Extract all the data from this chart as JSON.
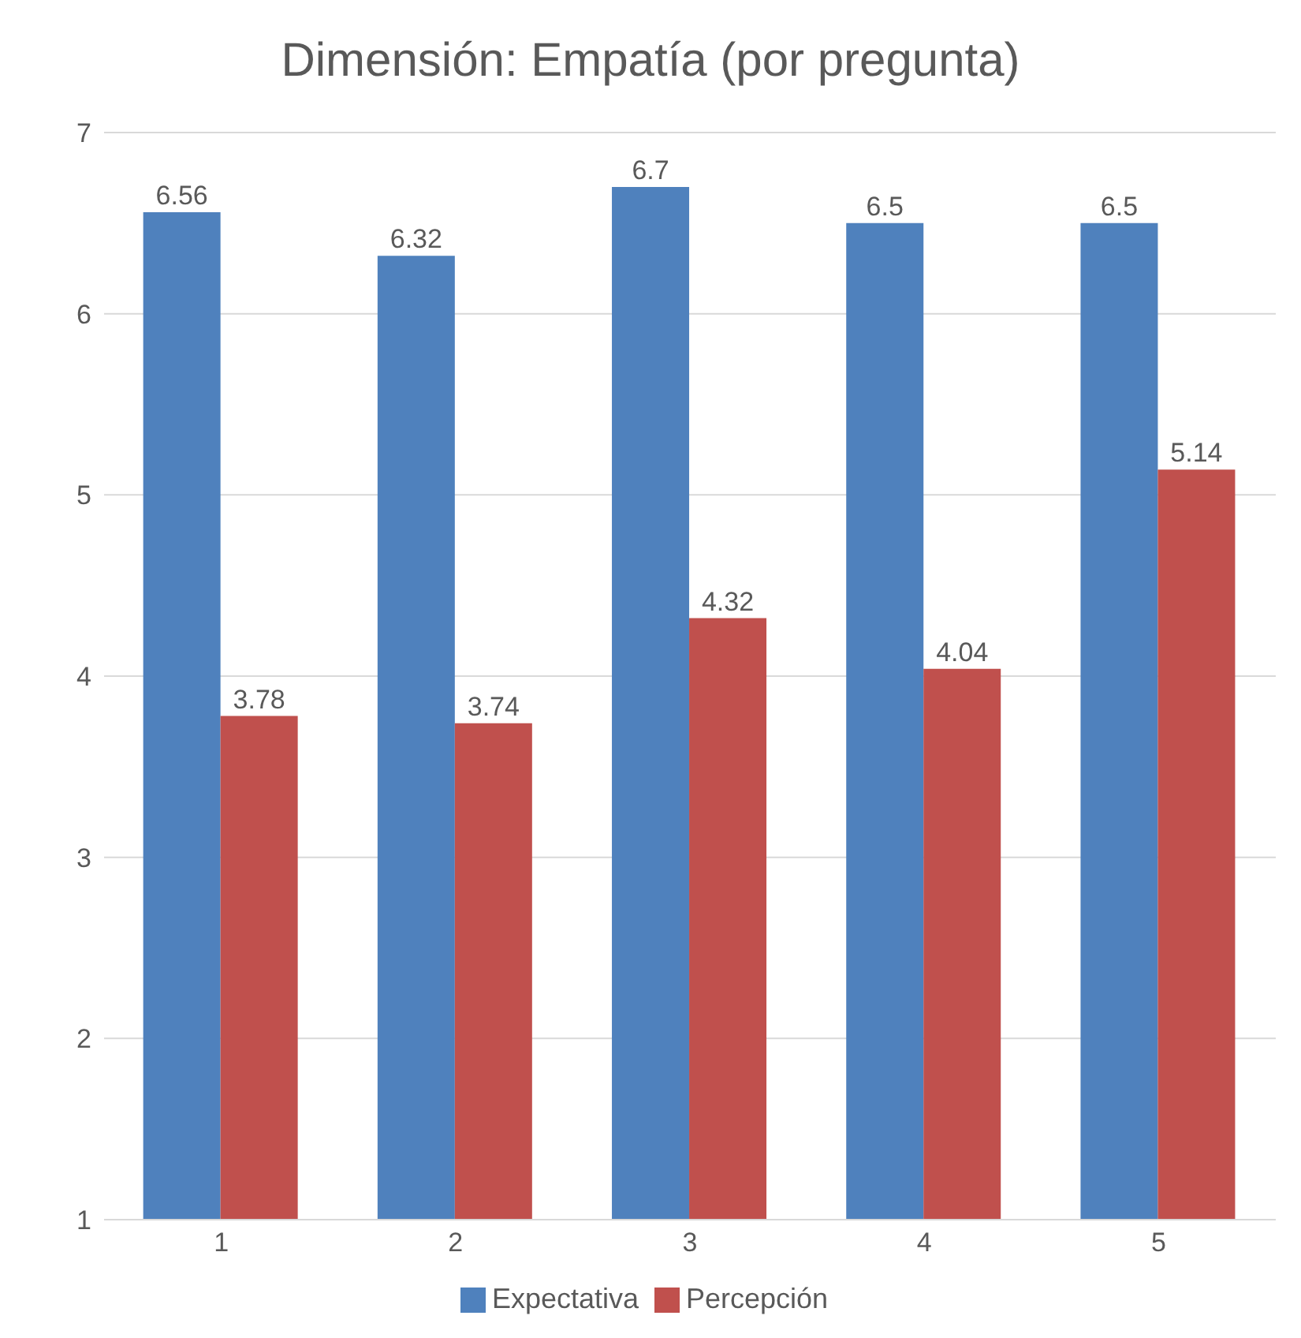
{
  "chart_data": {
    "type": "bar",
    "title": "Dimensión: Empatía (por pregunta)",
    "categories": [
      "1",
      "2",
      "3",
      "4",
      "5"
    ],
    "series": [
      {
        "name": "Expectativa",
        "color": "#4f81bd",
        "values": [
          6.56,
          6.32,
          6.7,
          6.5,
          6.5
        ]
      },
      {
        "name": "Percepción",
        "color": "#c0504d",
        "values": [
          3.78,
          3.74,
          4.32,
          4.04,
          5.14
        ]
      }
    ],
    "ylim": [
      1,
      7
    ],
    "yticks": [
      1,
      2,
      3,
      4,
      5,
      6,
      7
    ],
    "grid": "y",
    "legend": "bottom",
    "data_labels": true
  }
}
